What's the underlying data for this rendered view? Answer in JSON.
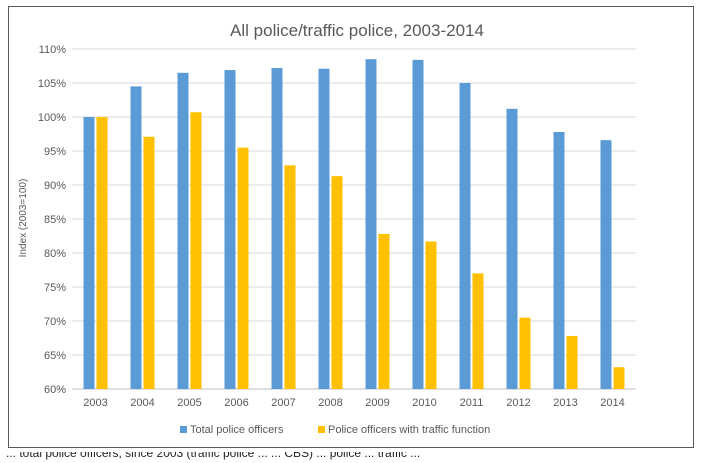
{
  "chart_data": {
    "type": "bar",
    "title": "All police/traffic police, 2003-2014",
    "ylabel": "Index (2003=100)",
    "xlabel": "",
    "categories": [
      "2003",
      "2004",
      "2005",
      "2006",
      "2007",
      "2008",
      "2009",
      "2010",
      "2011",
      "2012",
      "2013",
      "2014"
    ],
    "series": [
      {
        "name": "Total police officers",
        "color": "#5B9BD5",
        "values": [
          100,
          104.5,
          106.5,
          106.9,
          107.2,
          107.1,
          108.5,
          108.4,
          105.0,
          101.2,
          97.8,
          96.6
        ]
      },
      {
        "name": "Police officers with traffic function",
        "color": "#FFC000",
        "values": [
          100,
          97.1,
          100.7,
          95.5,
          92.9,
          91.3,
          82.8,
          81.7,
          77.0,
          70.5,
          67.8,
          63.2
        ]
      }
    ],
    "ylim": [
      60,
      110
    ],
    "yticks": [
      "60%",
      "65%",
      "70%",
      "75%",
      "80%",
      "85%",
      "90%",
      "95%",
      "100%",
      "105%",
      "110%"
    ],
    "grid": true,
    "legend": "bottom"
  },
  "footer": {
    "text": "... total police officers, since 2003 (traffic police ... ... CBS) ... police ... traffic ... "
  }
}
